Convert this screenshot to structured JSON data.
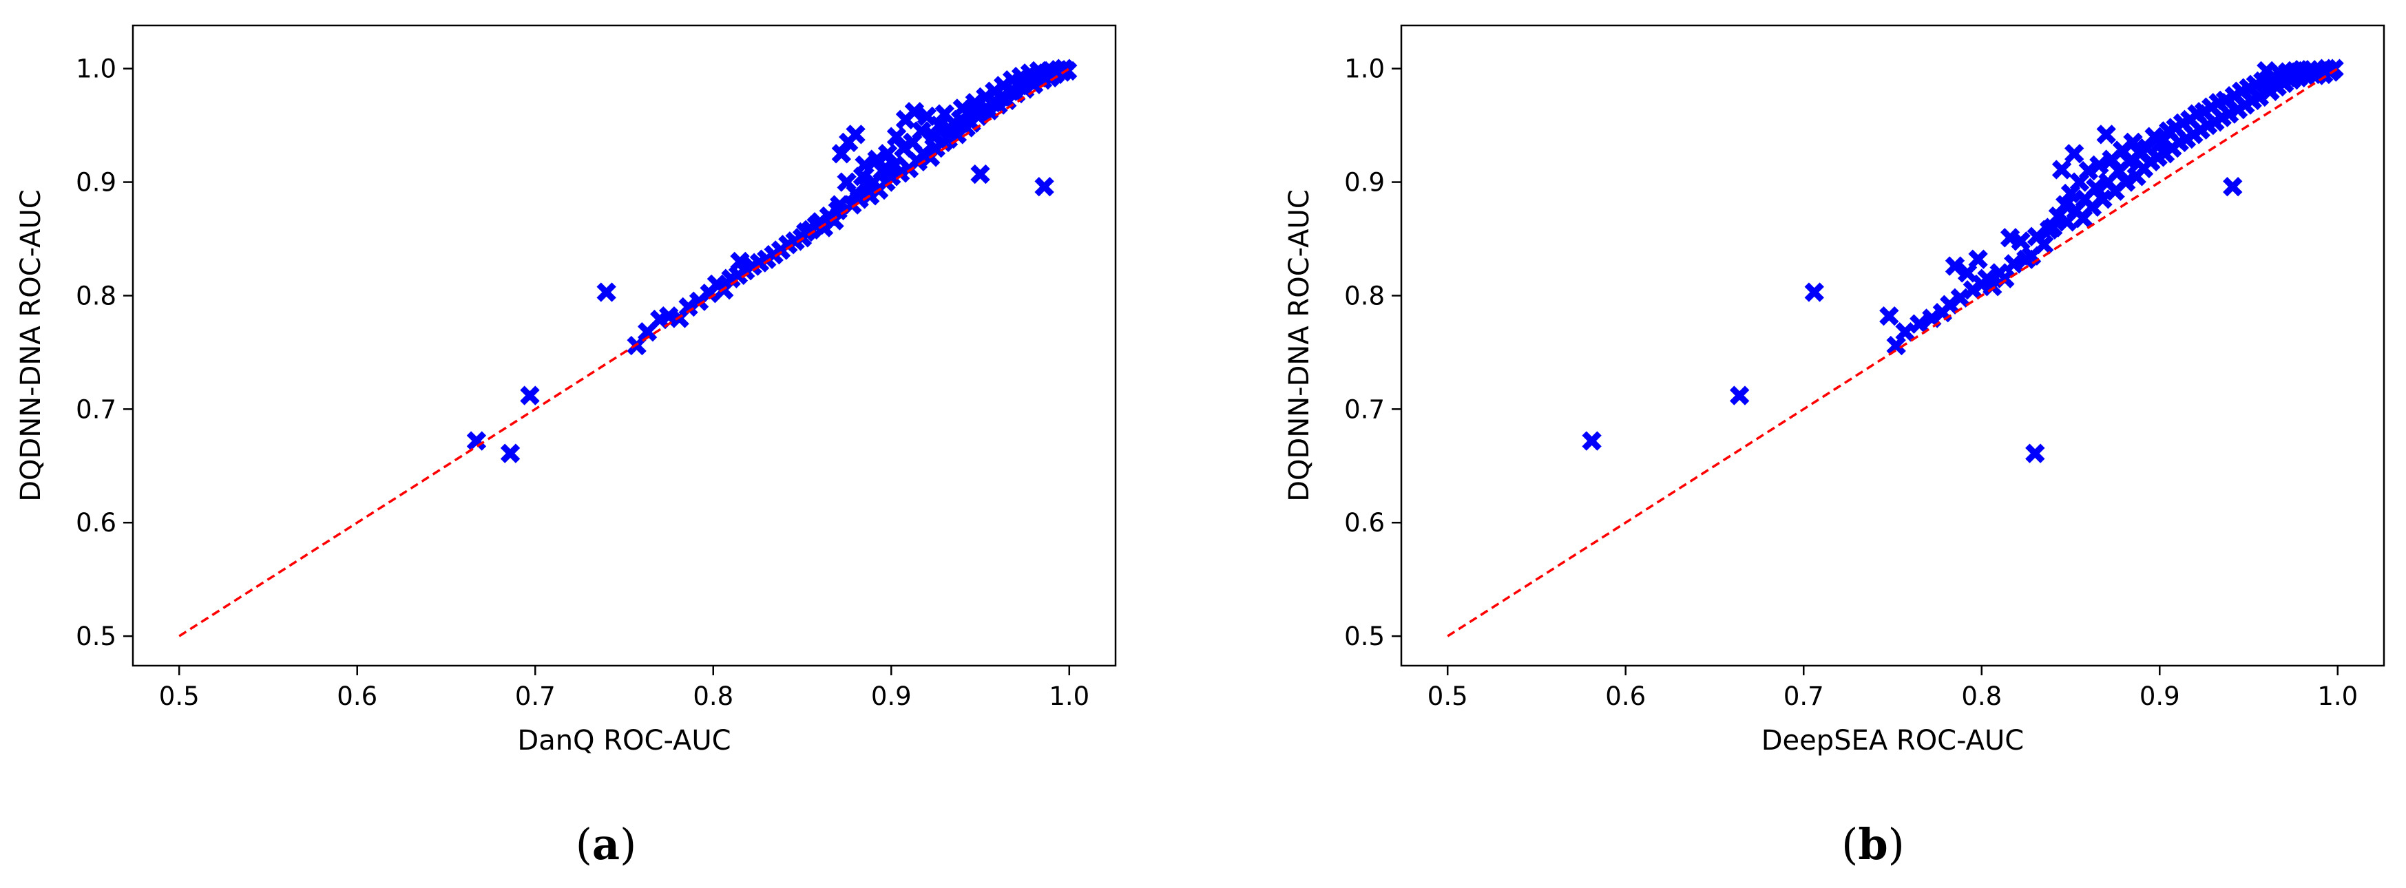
{
  "chart_data": [
    {
      "type": "scatter",
      "panel_label": "a",
      "xlabel": "DanQ ROC-AUC",
      "ylabel": "DQDNN-DNA ROC-AUC",
      "xlim": [
        0.474,
        1.026
      ],
      "ylim": [
        0.474,
        1.038
      ],
      "x_ticks": [
        "0.5",
        "0.6",
        "0.7",
        "0.8",
        "0.9",
        "1.0"
      ],
      "y_ticks": [
        "0.5",
        "0.6",
        "0.7",
        "0.8",
        "0.9",
        "1.0"
      ],
      "grid": false,
      "marker": "X",
      "marker_color": "#0000ff",
      "reference_line": {
        "x": [
          0.5,
          1.0
        ],
        "y": [
          0.5,
          1.0
        ],
        "color": "#ff0000",
        "style": "dashed"
      },
      "points": [
        [
          0.667,
          0.672
        ],
        [
          0.686,
          0.661
        ],
        [
          0.697,
          0.712
        ],
        [
          0.74,
          0.803
        ],
        [
          0.757,
          0.756
        ],
        [
          0.763,
          0.768
        ],
        [
          0.77,
          0.779
        ],
        [
          0.775,
          0.782
        ],
        [
          0.781,
          0.78
        ],
        [
          0.786,
          0.79
        ],
        [
          0.792,
          0.795
        ],
        [
          0.798,
          0.802
        ],
        [
          0.802,
          0.81
        ],
        [
          0.806,
          0.805
        ],
        [
          0.81,
          0.815
        ],
        [
          0.814,
          0.818
        ],
        [
          0.815,
          0.83
        ],
        [
          0.818,
          0.822
        ],
        [
          0.822,
          0.826
        ],
        [
          0.826,
          0.829
        ],
        [
          0.83,
          0.832
        ],
        [
          0.834,
          0.836
        ],
        [
          0.838,
          0.84
        ],
        [
          0.842,
          0.845
        ],
        [
          0.846,
          0.848
        ],
        [
          0.85,
          0.851
        ],
        [
          0.852,
          0.856
        ],
        [
          0.855,
          0.858
        ],
        [
          0.858,
          0.862
        ],
        [
          0.86,
          0.865
        ],
        [
          0.862,
          0.86
        ],
        [
          0.865,
          0.87
        ],
        [
          0.868,
          0.866
        ],
        [
          0.87,
          0.875
        ],
        [
          0.871,
          0.88
        ],
        [
          0.872,
          0.925
        ],
        [
          0.875,
          0.9
        ],
        [
          0.876,
          0.935
        ],
        [
          0.878,
          0.88
        ],
        [
          0.88,
          0.942
        ],
        [
          0.88,
          0.89
        ],
        [
          0.882,
          0.885
        ],
        [
          0.884,
          0.905
        ],
        [
          0.885,
          0.915
        ],
        [
          0.887,
          0.895
        ],
        [
          0.888,
          0.888
        ],
        [
          0.89,
          0.9
        ],
        [
          0.892,
          0.92
        ],
        [
          0.893,
          0.893
        ],
        [
          0.895,
          0.91
        ],
        [
          0.897,
          0.9
        ],
        [
          0.898,
          0.925
        ],
        [
          0.9,
          0.905
        ],
        [
          0.902,
          0.915
        ],
        [
          0.903,
          0.94
        ],
        [
          0.905,
          0.908
        ],
        [
          0.907,
          0.93
        ],
        [
          0.908,
          0.955
        ],
        [
          0.91,
          0.912
        ],
        [
          0.912,
          0.935
        ],
        [
          0.913,
          0.962
        ],
        [
          0.915,
          0.918
        ],
        [
          0.917,
          0.945
        ],
        [
          0.918,
          0.925
        ],
        [
          0.92,
          0.958
        ],
        [
          0.922,
          0.922
        ],
        [
          0.924,
          0.94
        ],
        [
          0.925,
          0.93
        ],
        [
          0.927,
          0.95
        ],
        [
          0.929,
          0.935
        ],
        [
          0.93,
          0.96
        ],
        [
          0.932,
          0.938
        ],
        [
          0.934,
          0.945
        ],
        [
          0.935,
          0.952
        ],
        [
          0.937,
          0.942
        ],
        [
          0.939,
          0.955
        ],
        [
          0.94,
          0.965
        ],
        [
          0.942,
          0.948
        ],
        [
          0.944,
          0.96
        ],
        [
          0.945,
          0.952
        ],
        [
          0.947,
          0.97
        ],
        [
          0.949,
          0.958
        ],
        [
          0.95,
          0.907
        ],
        [
          0.951,
          0.962
        ],
        [
          0.953,
          0.975
        ],
        [
          0.955,
          0.963
        ],
        [
          0.957,
          0.97
        ],
        [
          0.958,
          0.98
        ],
        [
          0.96,
          0.968
        ],
        [
          0.962,
          0.975
        ],
        [
          0.963,
          0.985
        ],
        [
          0.965,
          0.972
        ],
        [
          0.967,
          0.98
        ],
        [
          0.968,
          0.99
        ],
        [
          0.97,
          0.978
        ],
        [
          0.972,
          0.985
        ],
        [
          0.973,
          0.993
        ],
        [
          0.975,
          0.982
        ],
        [
          0.977,
          0.99
        ],
        [
          0.978,
          0.996
        ],
        [
          0.98,
          0.986
        ],
        [
          0.982,
          0.993
        ],
        [
          0.983,
          0.998
        ],
        [
          0.985,
          0.99
        ],
        [
          0.986,
          0.896
        ],
        [
          0.987,
          0.996
        ],
        [
          0.989,
          0.992
        ],
        [
          0.99,
          0.998
        ],
        [
          0.992,
          0.995
        ],
        [
          0.994,
          0.999
        ],
        [
          0.996,
          0.997
        ],
        [
          0.997,
          1.0
        ],
        [
          0.999,
          0.998
        ]
      ]
    },
    {
      "type": "scatter",
      "panel_label": "b",
      "xlabel": "DeepSEA ROC-AUC",
      "ylabel": "DQDNN-DNA ROC-AUC",
      "xlim": [
        0.474,
        1.026
      ],
      "ylim": [
        0.474,
        1.038
      ],
      "x_ticks": [
        "0.5",
        "0.6",
        "0.7",
        "0.8",
        "0.9",
        "1.0"
      ],
      "y_ticks": [
        "0.5",
        "0.6",
        "0.7",
        "0.8",
        "0.9",
        "1.0"
      ],
      "grid": false,
      "marker": "X",
      "marker_color": "#0000ff",
      "reference_line": {
        "x": [
          0.5,
          1.0
        ],
        "y": [
          0.5,
          1.0
        ],
        "color": "#ff0000",
        "style": "dashed"
      },
      "points": [
        [
          0.581,
          0.672
        ],
        [
          0.664,
          0.712
        ],
        [
          0.706,
          0.803
        ],
        [
          0.748,
          0.782
        ],
        [
          0.752,
          0.756
        ],
        [
          0.757,
          0.768
        ],
        [
          0.765,
          0.775
        ],
        [
          0.772,
          0.78
        ],
        [
          0.778,
          0.785
        ],
        [
          0.782,
          0.792
        ],
        [
          0.785,
          0.826
        ],
        [
          0.788,
          0.798
        ],
        [
          0.792,
          0.82
        ],
        [
          0.795,
          0.805
        ],
        [
          0.798,
          0.832
        ],
        [
          0.8,
          0.81
        ],
        [
          0.803,
          0.815
        ],
        [
          0.806,
          0.808
        ],
        [
          0.81,
          0.82
        ],
        [
          0.813,
          0.815
        ],
        [
          0.816,
          0.851
        ],
        [
          0.818,
          0.828
        ],
        [
          0.822,
          0.848
        ],
        [
          0.825,
          0.832
        ],
        [
          0.828,
          0.835
        ],
        [
          0.83,
          0.661
        ],
        [
          0.831,
          0.852
        ],
        [
          0.835,
          0.845
        ],
        [
          0.838,
          0.858
        ],
        [
          0.84,
          0.86
        ],
        [
          0.843,
          0.87
        ],
        [
          0.845,
          0.911
        ],
        [
          0.847,
          0.88
        ],
        [
          0.848,
          0.865
        ],
        [
          0.85,
          0.89
        ],
        [
          0.852,
          0.925
        ],
        [
          0.853,
          0.875
        ],
        [
          0.855,
          0.9
        ],
        [
          0.857,
          0.868
        ],
        [
          0.858,
          0.885
        ],
        [
          0.86,
          0.91
        ],
        [
          0.862,
          0.878
        ],
        [
          0.864,
          0.895
        ],
        [
          0.866,
          0.915
        ],
        [
          0.868,
          0.885
        ],
        [
          0.87,
          0.942
        ],
        [
          0.871,
          0.9
        ],
        [
          0.873,
          0.92
        ],
        [
          0.875,
          0.892
        ],
        [
          0.877,
          0.91
        ],
        [
          0.879,
          0.928
        ],
        [
          0.881,
          0.9
        ],
        [
          0.883,
          0.918
        ],
        [
          0.885,
          0.935
        ],
        [
          0.887,
          0.905
        ],
        [
          0.889,
          0.925
        ],
        [
          0.891,
          0.912
        ],
        [
          0.893,
          0.93
        ],
        [
          0.895,
          0.918
        ],
        [
          0.897,
          0.94
        ],
        [
          0.899,
          0.922
        ],
        [
          0.901,
          0.935
        ],
        [
          0.903,
          0.925
        ],
        [
          0.905,
          0.945
        ],
        [
          0.907,
          0.93
        ],
        [
          0.909,
          0.948
        ],
        [
          0.911,
          0.935
        ],
        [
          0.913,
          0.952
        ],
        [
          0.915,
          0.938
        ],
        [
          0.917,
          0.955
        ],
        [
          0.919,
          0.942
        ],
        [
          0.921,
          0.96
        ],
        [
          0.923,
          0.946
        ],
        [
          0.925,
          0.962
        ],
        [
          0.927,
          0.95
        ],
        [
          0.929,
          0.966
        ],
        [
          0.931,
          0.953
        ],
        [
          0.933,
          0.97
        ],
        [
          0.935,
          0.957
        ],
        [
          0.937,
          0.972
        ],
        [
          0.939,
          0.96
        ],
        [
          0.941,
          0.896
        ],
        [
          0.942,
          0.976
        ],
        [
          0.944,
          0.964
        ],
        [
          0.946,
          0.98
        ],
        [
          0.948,
          0.968
        ],
        [
          0.95,
          0.983
        ],
        [
          0.952,
          0.972
        ],
        [
          0.954,
          0.986
        ],
        [
          0.956,
          0.975
        ],
        [
          0.958,
          0.989
        ],
        [
          0.96,
          0.998
        ],
        [
          0.962,
          0.98
        ],
        [
          0.964,
          0.993
        ],
        [
          0.966,
          0.984
        ],
        [
          0.968,
          0.995
        ],
        [
          0.97,
          0.987
        ],
        [
          0.972,
          0.997
        ],
        [
          0.974,
          0.99
        ],
        [
          0.976,
          0.998
        ],
        [
          0.978,
          0.992
        ],
        [
          0.98,
          0.999
        ],
        [
          0.982,
          0.994
        ],
        [
          0.984,
          0.999
        ],
        [
          0.986,
          0.996
        ],
        [
          0.988,
          0.994
        ],
        [
          0.99,
          0.998
        ],
        [
          0.992,
          0.995
        ],
        [
          0.994,
          1.0
        ],
        [
          0.996,
          0.997
        ],
        [
          0.998,
          1.0
        ]
      ]
    }
  ]
}
